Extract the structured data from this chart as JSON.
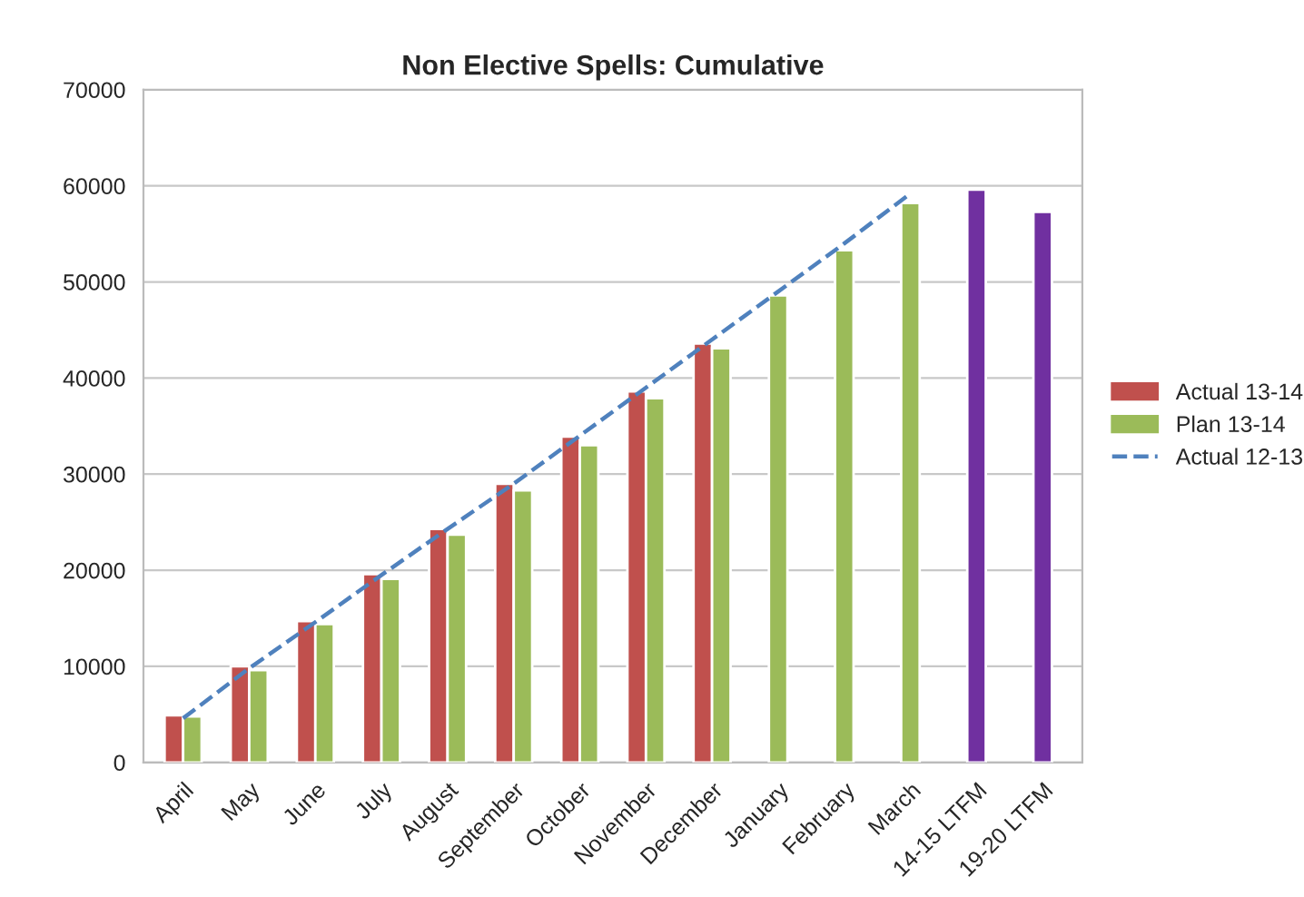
{
  "chart_data": {
    "type": "bar",
    "title": "Non Elective Spells: Cumulative",
    "categories": [
      "April",
      "May",
      "June",
      "July",
      "August",
      "September",
      "October",
      "November",
      "December",
      "January",
      "February",
      "March",
      "14-15 LTFM",
      "19-20 LTFM"
    ],
    "series": [
      {
        "name": "Actual 13-14",
        "color": "#c0504d",
        "values": [
          4900,
          10000,
          14700,
          19600,
          24300,
          29000,
          33900,
          38600,
          43600,
          null,
          null,
          null,
          null,
          null
        ]
      },
      {
        "name": "Plan 13-14",
        "color": "#9bbb59",
        "values": [
          4800,
          9600,
          14400,
          19100,
          23700,
          28300,
          33000,
          37900,
          43100,
          48600,
          53300,
          58200,
          null,
          null
        ]
      },
      {
        "name": "Actual 12-13",
        "type": "line",
        "line_style": "dashed",
        "color": "#4f81bd",
        "values": [
          4600,
          9800,
          14600,
          19500,
          24300,
          29000,
          34000,
          39000,
          44000,
          49000,
          54000,
          59200,
          null,
          null
        ]
      },
      {
        "color": "#7030a0",
        "values": [
          null,
          null,
          null,
          null,
          null,
          null,
          null,
          null,
          null,
          null,
          null,
          null,
          59600,
          57300
        ]
      }
    ],
    "ylim": [
      0,
      70000
    ],
    "yticks": [
      0,
      10000,
      20000,
      30000,
      40000,
      50000,
      60000,
      70000
    ],
    "grid": "y",
    "legend": "right"
  }
}
